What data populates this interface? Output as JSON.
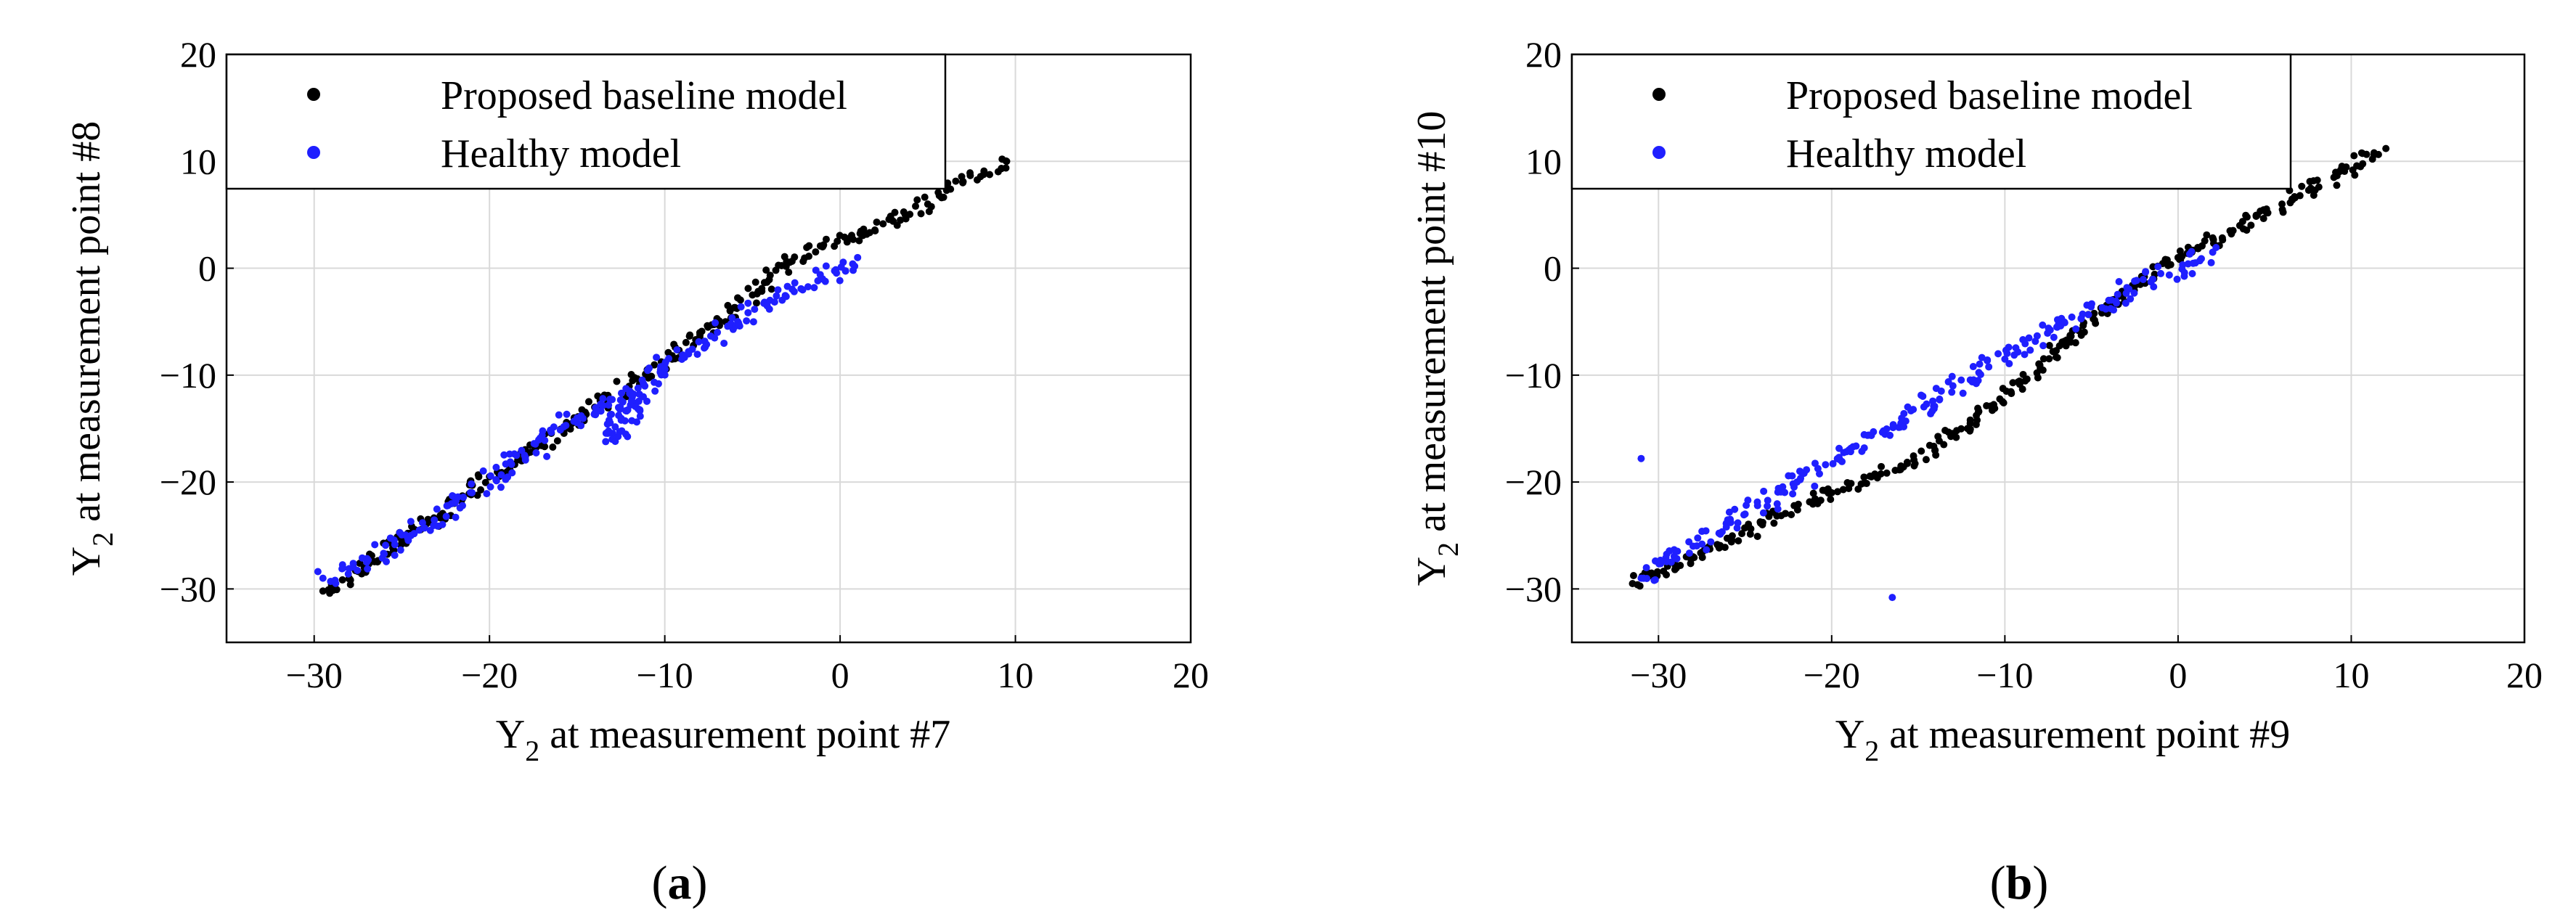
{
  "chart_data": [
    {
      "type": "scatter",
      "panel_label": "(a)",
      "xlabel": {
        "main": "Y",
        "sub": "2",
        "rest": " at measurement point #7"
      },
      "ylabel": {
        "main": "Y",
        "sub": "2",
        "rest": " at measurement point #8"
      },
      "xlim": [
        -35,
        20
      ],
      "ylim": [
        -35,
        20
      ],
      "xticks": [
        -30,
        -20,
        -10,
        0,
        10,
        20
      ],
      "yticks": [
        -30,
        -20,
        -10,
        0,
        10,
        20
      ],
      "grid": true,
      "legend_position": "top-left",
      "series": [
        {
          "name": "Proposed baseline model",
          "color": "#000000",
          "points": [
            [
              -29.5,
              -30.2
            ],
            [
              -28.0,
              -29.0
            ],
            [
              -25.0,
              -25.5
            ],
            [
              -22.0,
              -22.0
            ],
            [
              -20.0,
              -19.5
            ],
            [
              -17.0,
              -16.5
            ],
            [
              -14.0,
              -13.0
            ],
            [
              -11.0,
              -9.5
            ],
            [
              -8.0,
              -6.5
            ],
            [
              -5.0,
              -2.5
            ],
            [
              -3.0,
              0.5
            ],
            [
              -1.0,
              2.0
            ],
            [
              2.0,
              3.5
            ],
            [
              5.0,
              6.0
            ],
            [
              7.0,
              8.0
            ],
            [
              9.5,
              10.0
            ]
          ]
        },
        {
          "name": "Healthy model",
          "color": "#1f1fff",
          "points": [
            [
              -29.5,
              -29.0
            ],
            [
              -27.0,
              -27.5
            ],
            [
              -24.0,
              -24.5
            ],
            [
              -21.0,
              -21.0
            ],
            [
              -18.0,
              -17.5
            ],
            [
              -15.0,
              -14.0
            ],
            [
              -12.0,
              -11.5
            ],
            [
              -13.0,
              -16.0
            ],
            [
              -10.0,
              -9.0
            ],
            [
              -7.0,
              -6.0
            ],
            [
              -4.0,
              -3.0
            ],
            [
              -1.0,
              -1.0
            ],
            [
              1.0,
              1.0
            ]
          ]
        }
      ]
    },
    {
      "type": "scatter",
      "panel_label": "(b)",
      "xlabel": {
        "main": "Y",
        "sub": "2",
        "rest": " at measurement point #9"
      },
      "ylabel": {
        "main": "Y",
        "sub": "2",
        "rest": " at measurement point #10"
      },
      "xlim": [
        -35,
        20
      ],
      "ylim": [
        -35,
        20
      ],
      "xticks": [
        -30,
        -20,
        -10,
        0,
        10,
        20
      ],
      "yticks": [
        -30,
        -20,
        -10,
        0,
        10,
        20
      ],
      "grid": true,
      "legend_position": "top-left",
      "series": [
        {
          "name": "Proposed baseline model",
          "color": "#000000",
          "points": [
            [
              -31.5,
              -29.5
            ],
            [
              -28.0,
              -27.0
            ],
            [
              -24.0,
              -24.0
            ],
            [
              -20.0,
              -21.0
            ],
            [
              -16.0,
              -18.5
            ],
            [
              -12.0,
              -14.5
            ],
            [
              -8.0,
              -9.0
            ],
            [
              -4.0,
              -3.5
            ],
            [
              0.0,
              1.0
            ],
            [
              3.0,
              3.5
            ],
            [
              6.0,
              6.0
            ],
            [
              9.0,
              8.5
            ],
            [
              12.0,
              11.2
            ]
          ]
        },
        {
          "name": "Healthy model",
          "color": "#1f1fff",
          "points": [
            [
              -31.0,
              -29.0
            ],
            [
              -28.0,
              -26.0
            ],
            [
              -25.0,
              -23.0
            ],
            [
              -22.0,
              -20.0
            ],
            [
              -19.0,
              -17.0
            ],
            [
              -16.0,
              -14.5
            ],
            [
              -13.0,
              -11.0
            ],
            [
              -10.0,
              -8.5
            ],
            [
              -7.0,
              -5.5
            ],
            [
              -4.0,
              -3.0
            ],
            [
              -1.0,
              -0.5
            ],
            [
              1.0,
              0.5
            ],
            [
              2.0,
              1.5
            ],
            [
              -31.0,
              -17.8
            ],
            [
              -16.5,
              -30.8
            ]
          ]
        }
      ]
    }
  ]
}
